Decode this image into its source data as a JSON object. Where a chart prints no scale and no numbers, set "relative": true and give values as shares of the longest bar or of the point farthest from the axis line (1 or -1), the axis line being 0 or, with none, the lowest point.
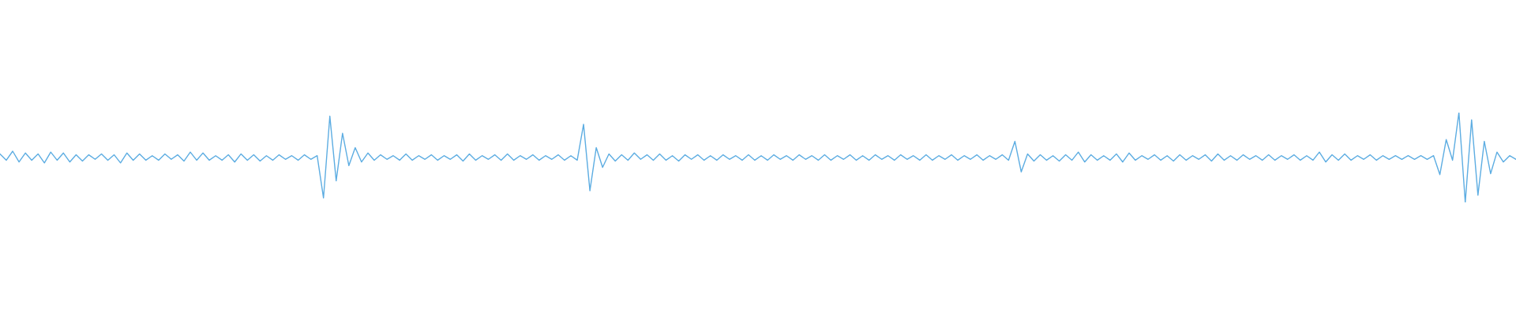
{
  "chart_data": {
    "type": "line",
    "relative": true,
    "tick_labels": false,
    "color": "#5dade2",
    "categories": [
      null,
      null,
      null,
      null,
      null,
      null,
      null,
      null,
      null,
      null,
      null,
      null,
      null,
      null,
      null,
      null,
      null,
      null,
      null,
      null,
      null,
      null,
      null,
      null,
      null,
      null,
      null,
      null,
      null,
      null,
      null,
      null,
      null,
      null,
      null,
      null,
      null,
      null,
      null,
      null,
      null,
      null,
      null,
      null,
      null,
      null,
      null,
      null,
      null,
      null,
      null,
      null,
      null,
      null,
      null,
      null,
      null,
      null,
      null,
      null,
      null,
      null,
      null,
      null,
      null,
      null,
      null,
      null,
      null,
      null,
      null,
      null,
      null,
      null,
      null,
      null,
      null,
      null,
      null,
      null,
      null,
      null,
      null,
      null,
      null,
      null,
      null,
      null,
      null,
      null,
      null,
      null,
      null,
      null,
      null,
      null,
      null,
      null,
      null,
      null,
      null,
      null,
      null,
      null,
      null,
      null,
      null,
      null,
      null,
      null,
      null,
      null,
      null,
      null,
      null,
      null,
      null,
      null,
      null,
      null,
      null,
      null,
      null,
      null,
      null,
      null,
      null,
      null,
      null,
      null,
      null,
      null,
      null,
      null,
      null,
      null,
      null,
      null,
      null,
      null,
      null,
      null,
      null,
      null,
      null,
      null,
      null,
      null,
      null,
      null,
      null,
      null,
      null,
      null,
      null,
      null,
      null,
      null,
      null,
      null,
      null,
      null,
      null,
      null,
      null,
      null,
      null,
      null,
      null,
      null,
      null,
      null,
      null,
      null,
      null,
      null,
      null,
      null,
      null,
      null,
      null,
      null,
      null,
      null,
      null,
      null,
      null,
      null,
      null,
      null,
      null,
      null,
      null,
      null,
      null,
      null,
      null,
      null,
      null,
      null,
      null,
      null,
      null,
      null,
      null,
      null,
      null,
      null,
      null,
      null,
      null,
      null,
      null,
      null,
      null,
      null,
      null,
      null,
      null,
      null,
      null,
      null,
      null,
      null,
      null,
      null,
      null,
      null,
      null,
      null,
      null,
      null,
      null,
      null,
      null,
      null,
      null,
      null,
      null,
      null
    ],
    "values": [
      0.54,
      0.47,
      0.57,
      0.45,
      0.55,
      0.47,
      0.54,
      0.44,
      0.56,
      0.47,
      0.55,
      0.45,
      0.53,
      0.46,
      0.53,
      0.48,
      0.54,
      0.47,
      0.53,
      0.44,
      0.55,
      0.47,
      0.54,
      0.47,
      0.52,
      0.47,
      0.54,
      0.48,
      0.53,
      0.46,
      0.56,
      0.47,
      0.55,
      0.47,
      0.52,
      0.47,
      0.53,
      0.45,
      0.54,
      0.47,
      0.53,
      0.46,
      0.52,
      0.47,
      0.53,
      0.48,
      0.52,
      0.47,
      0.53,
      0.48,
      0.52,
      0.05,
      0.96,
      0.24,
      0.77,
      0.41,
      0.61,
      0.45,
      0.55,
      0.47,
      0.53,
      0.48,
      0.52,
      0.47,
      0.54,
      0.47,
      0.52,
      0.48,
      0.53,
      0.47,
      0.52,
      0.48,
      0.53,
      0.46,
      0.54,
      0.47,
      0.52,
      0.48,
      0.53,
      0.47,
      0.54,
      0.47,
      0.52,
      0.48,
      0.53,
      0.47,
      0.52,
      0.48,
      0.53,
      0.47,
      0.52,
      0.47,
      0.87,
      0.13,
      0.61,
      0.39,
      0.54,
      0.46,
      0.53,
      0.47,
      0.55,
      0.48,
      0.53,
      0.47,
      0.54,
      0.47,
      0.52,
      0.46,
      0.53,
      0.48,
      0.53,
      0.47,
      0.52,
      0.47,
      0.53,
      0.48,
      0.52,
      0.47,
      0.53,
      0.47,
      0.52,
      0.47,
      0.53,
      0.48,
      0.52,
      0.47,
      0.53,
      0.48,
      0.52,
      0.47,
      0.53,
      0.47,
      0.52,
      0.48,
      0.53,
      0.47,
      0.52,
      0.47,
      0.53,
      0.48,
      0.52,
      0.47,
      0.53,
      0.48,
      0.52,
      0.47,
      0.53,
      0.47,
      0.52,
      0.48,
      0.53,
      0.47,
      0.52,
      0.48,
      0.53,
      0.47,
      0.52,
      0.48,
      0.53,
      0.47,
      0.68,
      0.34,
      0.54,
      0.46,
      0.53,
      0.47,
      0.52,
      0.46,
      0.53,
      0.47,
      0.56,
      0.45,
      0.53,
      0.47,
      0.52,
      0.47,
      0.54,
      0.45,
      0.55,
      0.47,
      0.52,
      0.48,
      0.53,
      0.47,
      0.52,
      0.46,
      0.53,
      0.47,
      0.52,
      0.48,
      0.53,
      0.46,
      0.54,
      0.47,
      0.52,
      0.47,
      0.53,
      0.48,
      0.52,
      0.47,
      0.53,
      0.47,
      0.52,
      0.48,
      0.53,
      0.47,
      0.52,
      0.47,
      0.56,
      0.45,
      0.53,
      0.47,
      0.54,
      0.47,
      0.52,
      0.48,
      0.53,
      0.47,
      0.52,
      0.48,
      0.52,
      0.48,
      0.52,
      0.48,
      0.52,
      0.48,
      0.52,
      0.31,
      0.7,
      0.47,
      1,
      0,
      0.92,
      0.08,
      0.68,
      0.32,
      0.56,
      0.45,
      0.52,
      0.48
    ]
  }
}
